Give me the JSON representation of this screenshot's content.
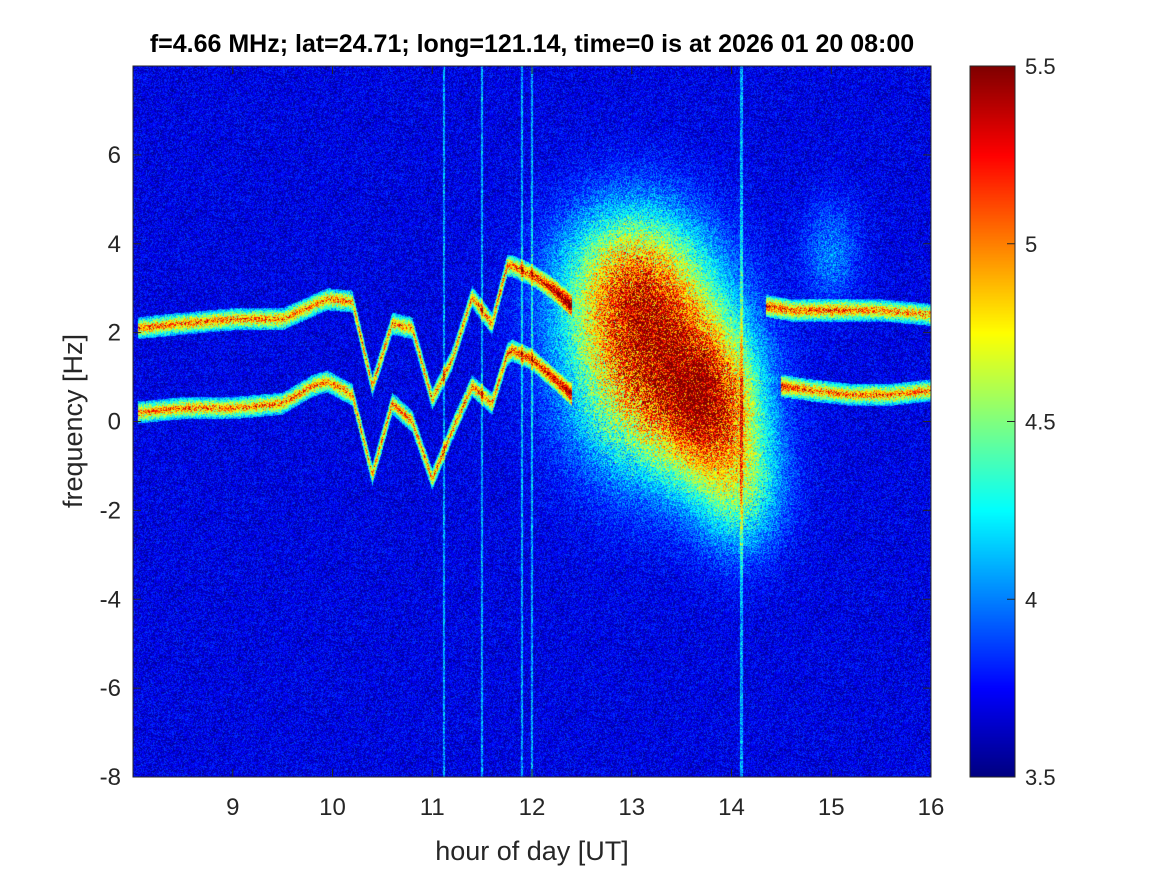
{
  "chart_data": {
    "type": "heatmap",
    "title": "f=4.66 MHz;  lat=24.71; long=121.14, time=0 is at 2026 01 20 08:00",
    "xlabel": "hour of day [UT]",
    "ylabel": "frequency [Hz]",
    "xlim": [
      8,
      16
    ],
    "ylim": [
      -8,
      8
    ],
    "x_ticks": [
      "9",
      "10",
      "11",
      "12",
      "13",
      "14",
      "15",
      "16"
    ],
    "y_ticks": [
      "-8",
      "-6",
      "-4",
      "-2",
      "0",
      "2",
      "4",
      "6"
    ],
    "colorbar": {
      "clim": [
        3.5,
        5.5
      ],
      "ticks": [
        "3.5",
        "4",
        "4.5",
        "5",
        "5.5"
      ],
      "colormap": "jet"
    },
    "background_level": 3.7,
    "traces": [
      {
        "name": "",
        "points": [
          [
            8.05,
            2.1
          ],
          [
            8.5,
            2.2
          ],
          [
            9.0,
            2.3
          ],
          [
            9.5,
            2.3
          ],
          [
            9.8,
            2.6
          ],
          [
            9.95,
            2.75
          ],
          [
            10.2,
            2.7
          ],
          [
            10.4,
            0.8
          ],
          [
            10.6,
            2.2
          ],
          [
            10.8,
            2.1
          ],
          [
            11.0,
            0.5
          ],
          [
            11.2,
            1.4
          ],
          [
            11.4,
            2.8
          ],
          [
            11.6,
            2.2
          ],
          [
            11.75,
            3.5
          ],
          [
            11.8,
            3.5
          ],
          [
            12.0,
            3.3
          ],
          [
            12.2,
            3.0
          ],
          [
            12.4,
            2.6
          ]
        ]
      },
      {
        "name": "",
        "points": [
          [
            8.05,
            0.2
          ],
          [
            8.5,
            0.3
          ],
          [
            9.0,
            0.3
          ],
          [
            9.5,
            0.4
          ],
          [
            9.8,
            0.8
          ],
          [
            9.95,
            0.9
          ],
          [
            10.2,
            0.6
          ],
          [
            10.4,
            -1.2
          ],
          [
            10.6,
            0.4
          ],
          [
            10.8,
            0.0
          ],
          [
            11.0,
            -1.3
          ],
          [
            11.2,
            -0.2
          ],
          [
            11.4,
            0.8
          ],
          [
            11.6,
            0.4
          ],
          [
            11.75,
            1.5
          ],
          [
            11.8,
            1.6
          ],
          [
            12.0,
            1.4
          ],
          [
            12.2,
            1.0
          ],
          [
            12.4,
            0.6
          ]
        ]
      },
      {
        "name": "",
        "points": [
          [
            14.35,
            2.6
          ],
          [
            14.6,
            2.5
          ],
          [
            15.0,
            2.5
          ],
          [
            15.5,
            2.5
          ],
          [
            16.0,
            2.4
          ]
        ]
      },
      {
        "name": "",
        "points": [
          [
            14.5,
            0.8
          ],
          [
            14.8,
            0.7
          ],
          [
            15.2,
            0.6
          ],
          [
            15.6,
            0.6
          ],
          [
            16.0,
            0.7
          ]
        ]
      }
    ],
    "blobs": [
      {
        "x": 13.2,
        "y": 1.2,
        "sx": 0.55,
        "sy": 1.6,
        "peak": 5.0
      },
      {
        "x": 13.8,
        "y": 0.3,
        "sx": 0.35,
        "sy": 1.2,
        "peak": 4.8
      },
      {
        "x": 13.0,
        "y": 3.2,
        "sx": 0.5,
        "sy": 1.2,
        "peak": 4.6
      },
      {
        "x": 14.1,
        "y": -1.6,
        "sx": 0.3,
        "sy": 1.0,
        "peak": 4.3
      },
      {
        "x": 15.0,
        "y": 3.8,
        "sx": 0.2,
        "sy": 0.8,
        "peak": 4.0
      }
    ],
    "vertical_streaks": [
      11.12,
      11.5,
      11.9,
      12.0,
      14.1
    ]
  }
}
